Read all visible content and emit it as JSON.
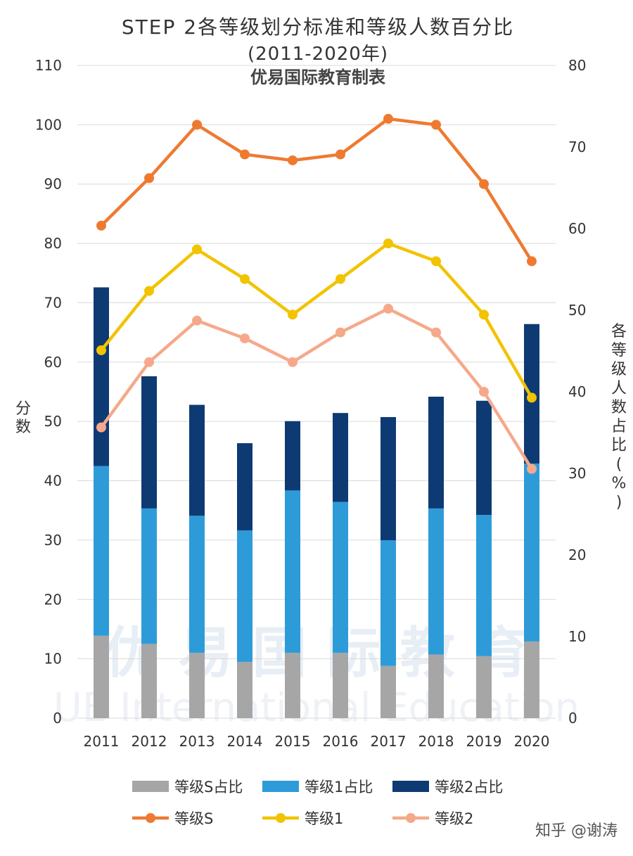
{
  "chart_data": {
    "type": "bar+line",
    "title": "STEP 2各等级划分标准和等级人数百分比",
    "subtitle": "(2011-2020年)",
    "subtitle2": "优易国际教育制表",
    "ylabel": "分数",
    "y2label": "各等级人数占比(%)",
    "ylim": [
      0,
      110
    ],
    "y2lim": [
      0,
      80
    ],
    "yticks": [
      "0",
      "10",
      "20",
      "30",
      "40",
      "50",
      "60",
      "70",
      "80",
      "90",
      "100",
      "110"
    ],
    "y2ticks": [
      "0",
      "10",
      "20",
      "30",
      "40",
      "50",
      "60",
      "70",
      "80"
    ],
    "categories": [
      "2011",
      "2012",
      "2013",
      "2014",
      "2015",
      "2016",
      "2017",
      "2018",
      "2019",
      "2020"
    ],
    "bar_series": [
      {
        "name": "等级S占比",
        "color": "#a6a6a6",
        "values": [
          10.1,
          9.1,
          8.0,
          6.9,
          8.0,
          8.0,
          6.4,
          7.8,
          7.6,
          9.4
        ]
      },
      {
        "name": "等级1占比",
        "color": "#2e9bd9",
        "values": [
          20.8,
          16.6,
          16.8,
          16.1,
          19.9,
          18.5,
          15.4,
          17.9,
          17.3,
          21.8
        ]
      },
      {
        "name": "等级2占比",
        "color": "#0e3a73",
        "values": [
          21.9,
          16.2,
          13.6,
          10.7,
          8.5,
          10.9,
          15.1,
          13.7,
          14.0,
          17.1
        ]
      }
    ],
    "line_series": [
      {
        "name": "等级S",
        "color": "#ee7a30",
        "values": [
          83,
          91,
          100,
          95,
          94,
          95,
          101,
          100,
          90,
          77
        ]
      },
      {
        "name": "等级1",
        "color": "#f2c300",
        "values": [
          62,
          72,
          79,
          74,
          68,
          74,
          80,
          77,
          68,
          54
        ]
      },
      {
        "name": "等级2",
        "color": "#f5a98a",
        "values": [
          49,
          60,
          67,
          64,
          60,
          65,
          69,
          65,
          55,
          42
        ]
      }
    ],
    "grid": true,
    "legend_position": "bottom"
  },
  "watermark": {
    "text": "知乎 @谢涛",
    "bg_cn": "优 易 国 际 教 育",
    "bg_en": "UE International Education"
  },
  "colors": {
    "grid": "#d9d9d9",
    "text": "#333333"
  }
}
